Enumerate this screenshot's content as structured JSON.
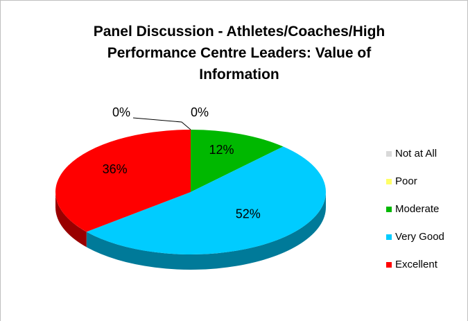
{
  "chart_data": {
    "type": "pie",
    "title": "Panel Discussion - Athletes/Coaches/High Performance Centre Leaders: Value of Information",
    "categories": [
      "Not at All",
      "Poor",
      "Moderate",
      "Very Good",
      "Excellent"
    ],
    "values": [
      0,
      0,
      12,
      52,
      36
    ],
    "value_labels": [
      "0%",
      "0%",
      "12%",
      "52%",
      "36%"
    ],
    "colors": [
      "#d9d9d9",
      "#ffff66",
      "#00b800",
      "#00ccff",
      "#ff0000"
    ],
    "legend": "right"
  }
}
